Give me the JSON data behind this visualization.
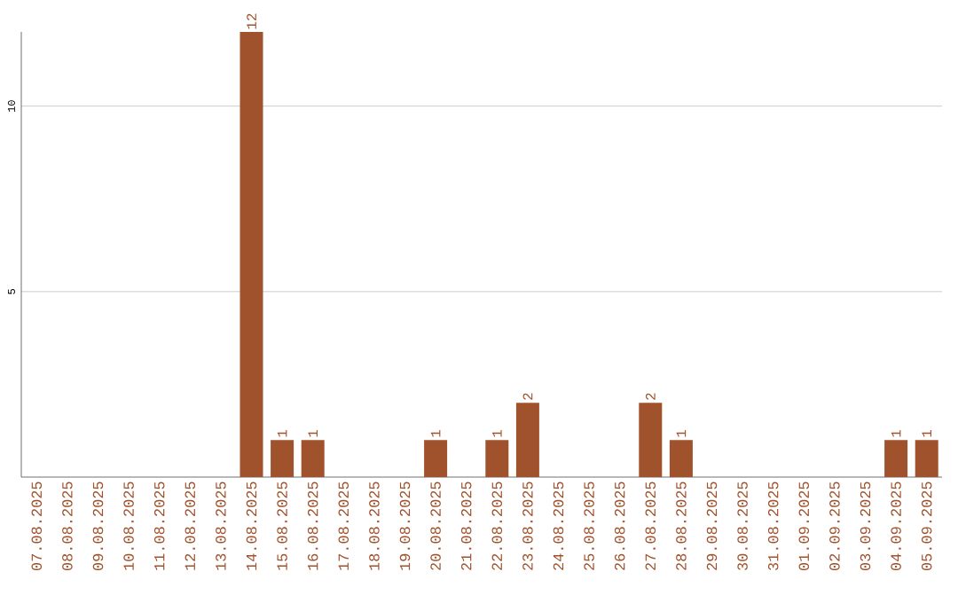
{
  "chart_data": {
    "type": "bar",
    "categories": [
      "07.08.2025",
      "08.08.2025",
      "09.08.2025",
      "10.08.2025",
      "11.08.2025",
      "12.08.2025",
      "13.08.2025",
      "14.08.2025",
      "15.08.2025",
      "16.08.2025",
      "17.08.2025",
      "18.08.2025",
      "19.08.2025",
      "20.08.2025",
      "21.08.2025",
      "22.08.2025",
      "23.08.2025",
      "24.08.2025",
      "25.08.2025",
      "26.08.2025",
      "27.08.2025",
      "28.08.2025",
      "29.08.2025",
      "30.08.2025",
      "31.08.2025",
      "01.09.2025",
      "02.09.2025",
      "03.09.2025",
      "04.09.2025",
      "05.09.2025"
    ],
    "values": [
      0,
      0,
      0,
      0,
      0,
      0,
      0,
      12,
      1,
      1,
      0,
      0,
      0,
      1,
      0,
      1,
      2,
      0,
      0,
      0,
      2,
      1,
      0,
      0,
      0,
      0,
      0,
      0,
      1,
      1
    ],
    "value_labels": [
      null,
      null,
      null,
      null,
      null,
      null,
      null,
      "12",
      "1",
      "1",
      null,
      null,
      null,
      "1",
      null,
      "1",
      "2",
      null,
      null,
      null,
      "2",
      "1",
      null,
      null,
      null,
      null,
      null,
      null,
      "1",
      "1"
    ],
    "color": "#a0522d",
    "ylim": [
      0,
      12
    ],
    "yticks": [
      5,
      10
    ],
    "grid": "y"
  }
}
